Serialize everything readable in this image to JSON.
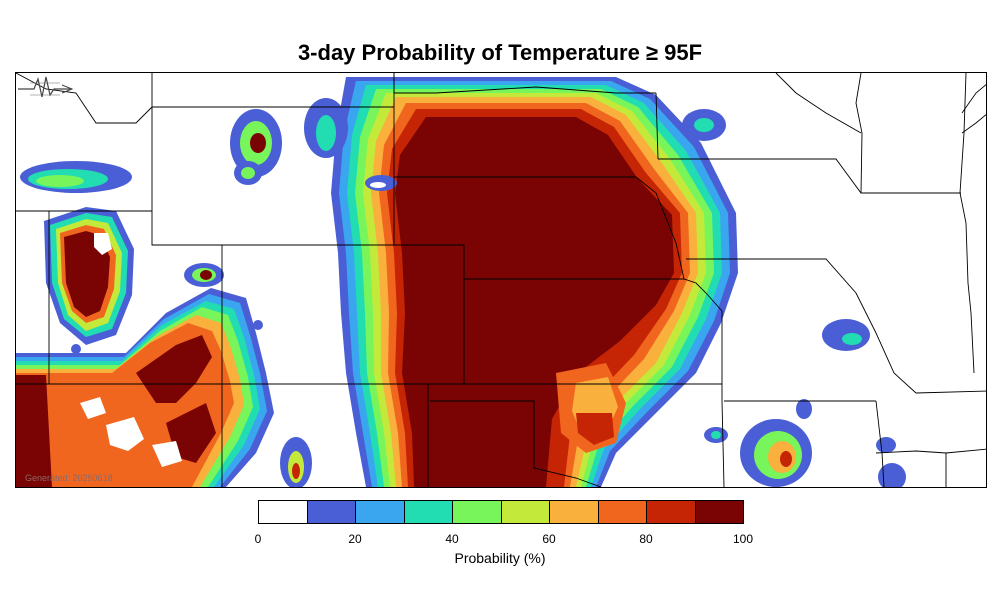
{
  "title": "3-day Probability of Temperature ≥ 95F",
  "generated": "Generated: 20250618",
  "legend": {
    "label": "Probability (%)",
    "colors": [
      "#ffffff",
      "#4a5fd6",
      "#3aa6f0",
      "#22dcb2",
      "#78f55a",
      "#c3ea3a",
      "#f9b03c",
      "#f1661f",
      "#c52504",
      "#7a0403"
    ],
    "ticks": [
      "0",
      "20",
      "40",
      "60",
      "80",
      "100"
    ]
  },
  "map": {
    "region": "Central United States",
    "colors": {
      "c10": "#4a5fd6",
      "c20": "#3aa6f0",
      "c30": "#22dcb2",
      "c40": "#78f55a",
      "c50": "#c3ea3a",
      "c60": "#f9b03c",
      "c70": "#f1661f",
      "c80": "#c52504",
      "c90": "#7a0403"
    }
  }
}
